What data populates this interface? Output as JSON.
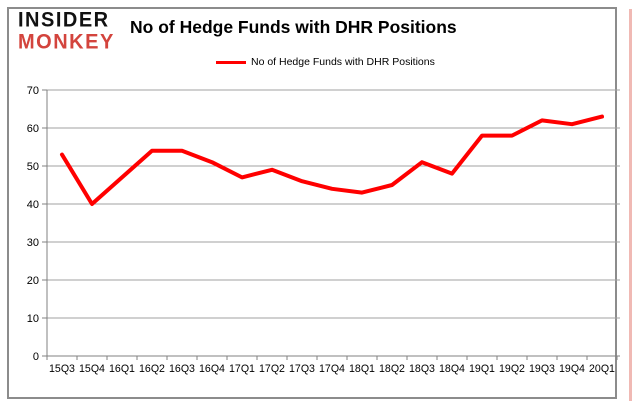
{
  "logo": {
    "line1": "INSIDER",
    "line2": "MONKEY"
  },
  "header": {
    "title": "No of Hedge Funds with DHR Positions"
  },
  "legend": {
    "label": "No of Hedge Funds with DHR Positions"
  },
  "colors": {
    "series": "#ff0000",
    "logo_black": "#111111",
    "logo_red": "#d3443d",
    "grid": "#a0a0a0",
    "axis": "#808080",
    "frame": "#8c8c8c",
    "pink_edge": "#f0b9b4",
    "text": "#000000"
  },
  "chart_data": {
    "type": "line",
    "title": "No of Hedge Funds with DHR Positions",
    "categories": [
      "15Q3",
      "15Q4",
      "16Q1",
      "16Q2",
      "16Q3",
      "16Q4",
      "17Q1",
      "17Q2",
      "17Q3",
      "17Q4",
      "18Q1",
      "18Q2",
      "18Q3",
      "18Q4",
      "19Q1",
      "19Q2",
      "19Q3",
      "19Q4",
      "20Q1"
    ],
    "series": [
      {
        "name": "No of Hedge Funds with DHR Positions",
        "color": "#ff0000",
        "values": [
          53,
          40,
          47,
          54,
          54,
          51,
          47,
          49,
          46,
          44,
          43,
          45,
          51,
          48,
          58,
          58,
          62,
          61,
          63
        ]
      }
    ],
    "xlabel": "",
    "ylabel": "",
    "ylim": [
      0,
      70
    ],
    "yticks": [
      0,
      10,
      20,
      30,
      40,
      50,
      60,
      70
    ],
    "grid": true,
    "legend_position": "top-center"
  }
}
